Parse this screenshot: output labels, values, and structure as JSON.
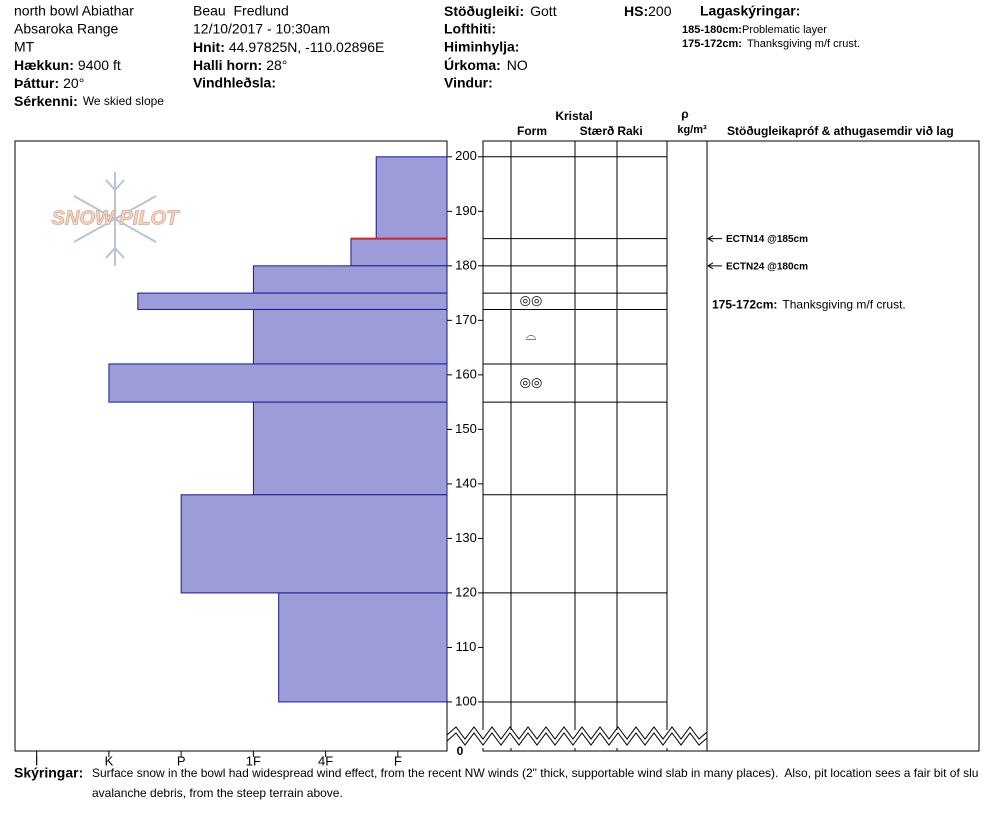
{
  "header": {
    "location": "north bowl Abiathar",
    "range": "Absaroka Range",
    "state": "MT",
    "elevation_label": "Hækkun:",
    "elevation": "9400 ft",
    "aspect_label": "Þáttur:",
    "aspect": "20°",
    "feature_label": "Sérkenni:",
    "feature": "We skied slope",
    "observer": "Beau  Fredlund",
    "datetime": "12/10/2017 - 10:30am",
    "coords_label": "Hnit:",
    "coords": "44.97825N, -110.02896E",
    "slope_label": "Halli horn:",
    "slope": "28°",
    "wind_loading_label": "Vindhleðsla:",
    "stability_label": "Stöðugleiki:",
    "stability": "Gott",
    "air_temp_label": "Lofthiti:",
    "sky_label": "Himinhylja:",
    "precip_label": "Úrkoma:",
    "precip": "NO",
    "wind_label": "Vindur:",
    "hs_label": "HS:",
    "hs": "200",
    "legend_title": "Lagaskýringar:",
    "legend": [
      {
        "range": "185-180cm:",
        "text": "Problematic layer"
      },
      {
        "range": "175-172cm:",
        "text": "Thanksgiving m/f crust."
      }
    ]
  },
  "column_headers": {
    "crystal": "Kristal",
    "form": "Form",
    "size": "Stærð",
    "moisture": "Raki",
    "density_symbol": "ρ",
    "density_unit": "kg/m³",
    "tests": "Stöðugleikapróf & athugasemdir við lag"
  },
  "logo": "SNOW PILOT",
  "chart_data": {
    "type": "bar",
    "xlim": [
      6.3,
      0.32
    ],
    "xticks": [
      {
        "value": 6,
        "label": "I"
      },
      {
        "value": 5,
        "label": "K"
      },
      {
        "value": 4,
        "label": "P"
      },
      {
        "value": 3,
        "label": "1F"
      },
      {
        "value": 2,
        "label": "4F"
      },
      {
        "value": 1,
        "label": "F"
      }
    ],
    "ylim": [
      91,
      202.9
    ],
    "yticks": [
      100,
      110,
      120,
      130,
      140,
      150,
      160,
      170,
      180,
      190,
      200
    ],
    "y_break_label": "0",
    "color": "#9c9cd8",
    "edge_color": "#1a1a8c",
    "problem_color": "#cc2233",
    "layers": [
      {
        "top": 200,
        "bottom": 185,
        "hardness": 1.3
      },
      {
        "top": 185,
        "bottom": 180,
        "hardness": 1.65,
        "problematic": true
      },
      {
        "top": 180,
        "bottom": 175,
        "hardness": 3
      },
      {
        "top": 175,
        "bottom": 172,
        "hardness": 4.6,
        "form": "◎◎",
        "comment_range": "175-172cm:",
        "comment": "Thanksgiving m/f crust."
      },
      {
        "top": 172,
        "bottom": 162,
        "hardness": 3,
        "form": "⌓"
      },
      {
        "top": 162,
        "bottom": 155,
        "hardness": 5,
        "form": "◎◎"
      },
      {
        "top": 155,
        "bottom": 138,
        "hardness": 3
      },
      {
        "top": 138,
        "bottom": 120,
        "hardness": 4
      },
      {
        "top": 120,
        "bottom": 100,
        "hardness": 2.65
      }
    ],
    "tests": [
      {
        "label": "ECTN14 @185cm",
        "depth": 185
      },
      {
        "label": "ECTN24 @180cm",
        "depth": 180
      }
    ]
  },
  "footer": {
    "label": "Skýringar:",
    "lines": [
      "Surface snow in the bowl had widespread wind effect, from the recent NW winds (2\" thick, supportable wind slab in many places).  Also, pit location sees a fair bit of slu",
      "avalanche debris, from the steep terrain above."
    ]
  }
}
